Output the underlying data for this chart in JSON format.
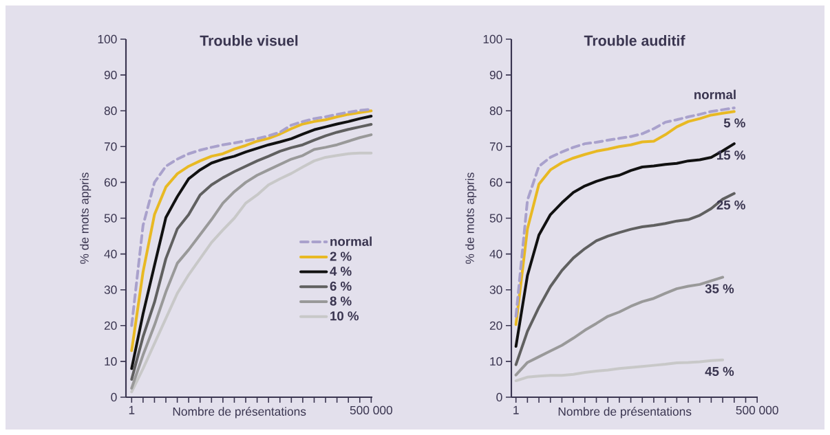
{
  "chart_data": [
    {
      "type": "line",
      "title": "Trouble visuel",
      "xlabel": "Nombre de présentations",
      "ylabel": "% de mots appris",
      "categories": [
        "1",
        null,
        null,
        null,
        null,
        null,
        null,
        null,
        null,
        null,
        null,
        null,
        null,
        null,
        null,
        null,
        null,
        null,
        null,
        null,
        null,
        "500 000"
      ],
      "ylim": [
        0,
        100
      ],
      "yticks": [
        0,
        10,
        20,
        30,
        40,
        50,
        60,
        70,
        80,
        90,
        100
      ],
      "legend": "bottom right",
      "series": [
        {
          "name": "normal",
          "color": "#a9a1cc",
          "line_style": "dashed",
          "values": [
            20,
            48,
            60,
            64.5,
            66.5,
            68,
            69,
            69.8,
            70.5,
            71,
            71.6,
            72.2,
            73,
            74,
            76,
            77,
            77.8,
            78.3,
            79,
            79.6,
            80.1,
            80.4
          ]
        },
        {
          "name": "2 %",
          "color": "#e8b923",
          "values": [
            13,
            35,
            51,
            58.7,
            62.4,
            64.5,
            66,
            67.3,
            68,
            69.3,
            70.3,
            71.5,
            72.3,
            73.5,
            75,
            76.3,
            77,
            77.5,
            78.3,
            79,
            79.5,
            80
          ]
        },
        {
          "name": "4 %",
          "color": "#111111",
          "values": [
            8,
            23.3,
            36.8,
            50.2,
            56,
            61,
            63.5,
            65.4,
            66.5,
            67.3,
            68.5,
            69.5,
            70.5,
            71.3,
            72.2,
            73.5,
            74.7,
            75.5,
            76.3,
            77,
            77.8,
            78.5
          ]
        },
        {
          "name": "6 %",
          "color": "#606060",
          "values": [
            5,
            16.9,
            26.5,
            38.7,
            47,
            51,
            56.5,
            59.3,
            61.3,
            63,
            64.5,
            66,
            67.3,
            68.7,
            69.7,
            70.5,
            71.8,
            73,
            74,
            74.8,
            75.5,
            76.2
          ]
        },
        {
          "name": "8 %",
          "color": "#999999",
          "values": [
            2.5,
            11.8,
            20.1,
            29.4,
            37.4,
            41.2,
            45.4,
            49.6,
            54.2,
            57.4,
            60,
            62,
            63.5,
            65,
            66.5,
            67.5,
            69.2,
            69.8,
            70.5,
            71.5,
            72.5,
            73.3
          ]
        },
        {
          "name": "10 %",
          "color": "#c8c8c8",
          "values": [
            1.5,
            8,
            15,
            22,
            29,
            34.2,
            38.7,
            43.2,
            46.7,
            50,
            54.2,
            56.5,
            59.3,
            61,
            62.5,
            64.3,
            66,
            67,
            67.5,
            68,
            68.2,
            68.2
          ]
        }
      ]
    },
    {
      "type": "line",
      "title": "Trouble auditif",
      "xlabel": "Nombre de présentations",
      "ylabel": "% de mots appris",
      "categories": [
        "1",
        null,
        null,
        null,
        null,
        null,
        null,
        null,
        null,
        null,
        null,
        null,
        null,
        null,
        null,
        null,
        null,
        null,
        null,
        null,
        null,
        "500 000"
      ],
      "ylim": [
        0,
        100
      ],
      "yticks": [
        0,
        10,
        20,
        30,
        40,
        50,
        60,
        70,
        80,
        90,
        100
      ],
      "series": [
        {
          "name": "normal",
          "color": "#a9a1cc",
          "line_style": "dashed",
          "values": [
            22.6,
            55,
            64.5,
            67,
            68.5,
            69.8,
            70.8,
            71.2,
            71.8,
            72.3,
            72.8,
            73.6,
            75,
            76.8,
            77.5,
            78.3,
            79,
            79.8,
            80.3,
            80.8,
            null,
            null
          ]
        },
        {
          "name": "5 %",
          "color": "#e8b923",
          "values": [
            20.3,
            47,
            59.5,
            63.5,
            65.5,
            66.8,
            67.8,
            68.7,
            69.3,
            70,
            70.5,
            71.3,
            71.5,
            73.3,
            75.5,
            77,
            77.8,
            78.8,
            79.3,
            79.8,
            null,
            null
          ]
        },
        {
          "name": "15 %",
          "color": "#111111",
          "values": [
            14.2,
            34,
            45.3,
            51,
            54.3,
            57.2,
            59,
            60.3,
            61.3,
            62,
            63.3,
            64.3,
            64.6,
            65,
            65.3,
            66,
            66.3,
            67,
            68.8,
            70.8,
            null,
            null
          ]
        },
        {
          "name": "25 %",
          "color": "#606060",
          "values": [
            9.1,
            18.4,
            25.1,
            30.9,
            35.4,
            38.9,
            41.5,
            43.7,
            45,
            46,
            46.9,
            47.6,
            48,
            48.5,
            49.2,
            49.6,
            50.8,
            52.7,
            55.3,
            56.9,
            null,
            null
          ]
        },
        {
          "name": "35 %",
          "color": "#999999",
          "values": [
            6.2,
            9.7,
            11.3,
            12.9,
            14.5,
            16.5,
            18.7,
            20.6,
            22.6,
            23.8,
            25.4,
            26.7,
            27.6,
            29,
            30.3,
            31,
            31.5,
            32.5,
            33.5,
            null,
            null,
            null
          ]
        },
        {
          "name": "45 %",
          "color": "#c8c8c8",
          "values": [
            4.6,
            5.6,
            5.9,
            6.1,
            6.1,
            6.4,
            6.9,
            7.3,
            7.6,
            8,
            8.3,
            8.6,
            8.9,
            9.2,
            9.6,
            9.7,
            9.9,
            10.2,
            10.4,
            null,
            null,
            null
          ]
        }
      ]
    }
  ]
}
